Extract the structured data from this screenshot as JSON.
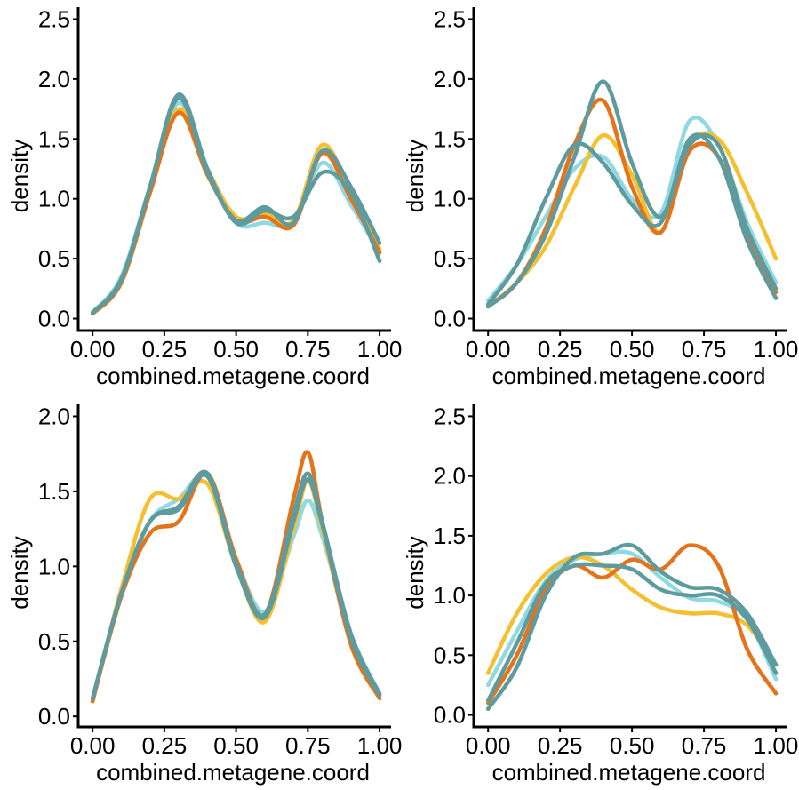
{
  "chart_data": [
    {
      "type": "line",
      "xlabel": "combined.metagene.coord",
      "ylabel": "density",
      "xlim": [
        -0.05,
        1.04
      ],
      "ylim": [
        -0.1,
        2.6
      ],
      "xticks": [
        "0.00",
        "0.25",
        "0.50",
        "0.75",
        "1.00"
      ],
      "yticks": [
        "0.0",
        "0.5",
        "1.0",
        "1.5",
        "2.0",
        "2.5"
      ],
      "series": [
        {
          "color": "#8ED9E3",
          "x": [
            0.0,
            0.1,
            0.2,
            0.3,
            0.4,
            0.5,
            0.6,
            0.7,
            0.8,
            0.9,
            1.0
          ],
          "values": [
            0.05,
            0.35,
            1.1,
            1.8,
            1.25,
            0.8,
            0.8,
            0.8,
            1.3,
            0.95,
            0.55
          ]
        },
        {
          "color": "#F5C030",
          "x": [
            0.0,
            0.1,
            0.2,
            0.3,
            0.4,
            0.5,
            0.6,
            0.7,
            0.8,
            0.9,
            1.0
          ],
          "values": [
            0.05,
            0.3,
            1.05,
            1.75,
            1.25,
            0.85,
            0.88,
            0.82,
            1.45,
            1.05,
            0.58
          ]
        },
        {
          "color": "#E5731A",
          "x": [
            0.0,
            0.1,
            0.2,
            0.3,
            0.4,
            0.5,
            0.6,
            0.7,
            0.8,
            0.9,
            1.0
          ],
          "values": [
            0.04,
            0.3,
            1.05,
            1.72,
            1.2,
            0.82,
            0.85,
            0.78,
            1.38,
            1.0,
            0.55
          ]
        },
        {
          "color": "#5E9B9F",
          "x": [
            0.0,
            0.1,
            0.2,
            0.3,
            0.4,
            0.5,
            0.6,
            0.7,
            0.8,
            0.9,
            1.0
          ],
          "values": [
            0.05,
            0.32,
            1.1,
            1.87,
            1.25,
            0.8,
            0.9,
            0.85,
            1.22,
            1.05,
            0.48
          ]
        },
        {
          "color": "#5E9B9F",
          "x": [
            0.0,
            0.1,
            0.2,
            0.3,
            0.4,
            0.5,
            0.6,
            0.7,
            0.8,
            0.9,
            1.0
          ],
          "values": [
            0.05,
            0.33,
            1.1,
            1.84,
            1.22,
            0.82,
            0.93,
            0.8,
            1.4,
            1.1,
            0.63
          ]
        }
      ]
    },
    {
      "type": "line",
      "xlabel": "combined.metagene.coord",
      "ylabel": "density",
      "xlim": [
        -0.05,
        1.04
      ],
      "ylim": [
        -0.1,
        2.6
      ],
      "xticks": [
        "0.00",
        "0.25",
        "0.50",
        "0.75",
        "1.00"
      ],
      "yticks": [
        "0.0",
        "0.5",
        "1.0",
        "1.5",
        "2.0",
        "2.5"
      ],
      "series": [
        {
          "color": "#8ED9E3",
          "x": [
            0.0,
            0.1,
            0.2,
            0.3,
            0.4,
            0.5,
            0.6,
            0.7,
            0.8,
            0.9,
            1.0
          ],
          "values": [
            0.15,
            0.45,
            0.85,
            1.25,
            1.35,
            1.0,
            0.88,
            1.65,
            1.45,
            0.8,
            0.3
          ]
        },
        {
          "color": "#F5C030",
          "x": [
            0.0,
            0.1,
            0.2,
            0.3,
            0.4,
            0.5,
            0.6,
            0.7,
            0.8,
            0.9,
            1.0
          ],
          "values": [
            0.1,
            0.3,
            0.6,
            1.1,
            1.53,
            1.2,
            0.72,
            1.45,
            1.5,
            1.05,
            0.5
          ]
        },
        {
          "color": "#E5731A",
          "x": [
            0.0,
            0.1,
            0.2,
            0.3,
            0.4,
            0.5,
            0.6,
            0.7,
            0.8,
            0.9,
            1.0
          ],
          "values": [
            0.1,
            0.3,
            0.75,
            1.45,
            1.82,
            1.1,
            0.72,
            1.4,
            1.35,
            0.7,
            0.22
          ]
        },
        {
          "color": "#5E9B9F",
          "x": [
            0.0,
            0.1,
            0.2,
            0.3,
            0.4,
            0.5,
            0.6,
            0.7,
            0.8,
            0.9,
            1.0
          ],
          "values": [
            0.12,
            0.45,
            1.0,
            1.45,
            1.3,
            0.95,
            0.8,
            1.5,
            1.35,
            0.65,
            0.17
          ]
        },
        {
          "color": "#5E9B9F",
          "x": [
            0.0,
            0.1,
            0.2,
            0.3,
            0.4,
            0.5,
            0.6,
            0.7,
            0.8,
            0.9,
            1.0
          ],
          "values": [
            0.1,
            0.3,
            0.7,
            1.35,
            1.98,
            1.3,
            0.85,
            1.45,
            1.45,
            0.75,
            0.25
          ]
        }
      ]
    },
    {
      "type": "line",
      "xlabel": "combined.metagene.coord",
      "ylabel": "density",
      "xlim": [
        -0.05,
        1.04
      ],
      "ylim": [
        -0.07,
        2.08
      ],
      "xticks": [
        "0.00",
        "0.25",
        "0.50",
        "0.75",
        "1.00"
      ],
      "yticks": [
        "0.0",
        "0.5",
        "1.0",
        "1.5",
        "2.0"
      ],
      "series": [
        {
          "color": "#8ED9E3",
          "x": [
            0.0,
            0.1,
            0.2,
            0.3,
            0.4,
            0.5,
            0.6,
            0.7,
            0.75,
            0.8,
            0.9,
            1.0
          ],
          "values": [
            0.12,
            0.8,
            1.3,
            1.45,
            1.6,
            1.05,
            0.7,
            1.2,
            1.44,
            1.2,
            0.55,
            0.15
          ]
        },
        {
          "color": "#F5C030",
          "x": [
            0.0,
            0.1,
            0.2,
            0.3,
            0.4,
            0.5,
            0.6,
            0.7,
            0.75,
            0.8,
            0.9,
            1.0
          ],
          "values": [
            0.1,
            0.85,
            1.45,
            1.45,
            1.55,
            1.0,
            0.63,
            1.25,
            1.57,
            1.25,
            0.5,
            0.12
          ]
        },
        {
          "color": "#E5731A",
          "x": [
            0.0,
            0.1,
            0.2,
            0.3,
            0.4,
            0.5,
            0.6,
            0.7,
            0.75,
            0.8,
            0.9,
            1.0
          ],
          "values": [
            0.1,
            0.8,
            1.22,
            1.3,
            1.62,
            1.05,
            0.68,
            1.45,
            1.76,
            1.3,
            0.48,
            0.12
          ]
        },
        {
          "color": "#5E9B9F",
          "x": [
            0.0,
            0.1,
            0.2,
            0.3,
            0.4,
            0.5,
            0.6,
            0.7,
            0.75,
            0.8,
            0.9,
            1.0
          ],
          "values": [
            0.12,
            0.82,
            1.3,
            1.4,
            1.62,
            1.02,
            0.68,
            1.35,
            1.62,
            1.3,
            0.55,
            0.15
          ]
        },
        {
          "color": "#5E9B9F",
          "x": [
            0.0,
            0.1,
            0.2,
            0.3,
            0.4,
            0.5,
            0.6,
            0.7,
            0.75,
            0.8,
            0.9,
            1.0
          ],
          "values": [
            0.12,
            0.82,
            1.3,
            1.38,
            1.6,
            1.0,
            0.66,
            1.3,
            1.58,
            1.28,
            0.52,
            0.14
          ]
        }
      ]
    },
    {
      "type": "line",
      "xlabel": "combined.metagene.coord",
      "ylabel": "density",
      "xlim": [
        -0.05,
        1.04
      ],
      "ylim": [
        -0.1,
        2.6
      ],
      "xticks": [
        "0.00",
        "0.25",
        "0.50",
        "0.75",
        "1.00"
      ],
      "yticks": [
        "0.0",
        "0.5",
        "1.0",
        "1.5",
        "2.0",
        "2.5"
      ],
      "series": [
        {
          "color": "#8ED9E3",
          "x": [
            0.0,
            0.1,
            0.2,
            0.3,
            0.4,
            0.5,
            0.6,
            0.7,
            0.8,
            0.9,
            1.0
          ],
          "values": [
            0.25,
            0.7,
            1.12,
            1.3,
            1.35,
            1.35,
            1.15,
            0.98,
            0.95,
            0.8,
            0.3
          ]
        },
        {
          "color": "#F5C030",
          "x": [
            0.0,
            0.1,
            0.2,
            0.3,
            0.4,
            0.5,
            0.6,
            0.7,
            0.8,
            0.9,
            1.0
          ],
          "values": [
            0.35,
            0.85,
            1.18,
            1.32,
            1.25,
            1.05,
            0.9,
            0.85,
            0.85,
            0.75,
            0.42
          ]
        },
        {
          "color": "#E5731A",
          "x": [
            0.0,
            0.1,
            0.2,
            0.3,
            0.4,
            0.5,
            0.6,
            0.7,
            0.8,
            0.9,
            1.0
          ],
          "values": [
            0.1,
            0.5,
            1.05,
            1.25,
            1.15,
            1.3,
            1.22,
            1.42,
            1.25,
            0.55,
            0.18
          ]
        },
        {
          "color": "#5E9B9F",
          "x": [
            0.0,
            0.1,
            0.2,
            0.3,
            0.4,
            0.5,
            0.6,
            0.7,
            0.8,
            0.9,
            1.0
          ],
          "values": [
            0.05,
            0.4,
            1.0,
            1.32,
            1.35,
            1.42,
            1.2,
            1.07,
            1.05,
            0.85,
            0.42
          ]
        },
        {
          "color": "#5E9B9F",
          "x": [
            0.0,
            0.1,
            0.2,
            0.3,
            0.4,
            0.5,
            0.6,
            0.7,
            0.8,
            0.9,
            1.0
          ],
          "values": [
            0.12,
            0.6,
            1.1,
            1.25,
            1.25,
            1.22,
            1.05,
            1.0,
            1.0,
            0.8,
            0.35
          ]
        }
      ]
    }
  ]
}
